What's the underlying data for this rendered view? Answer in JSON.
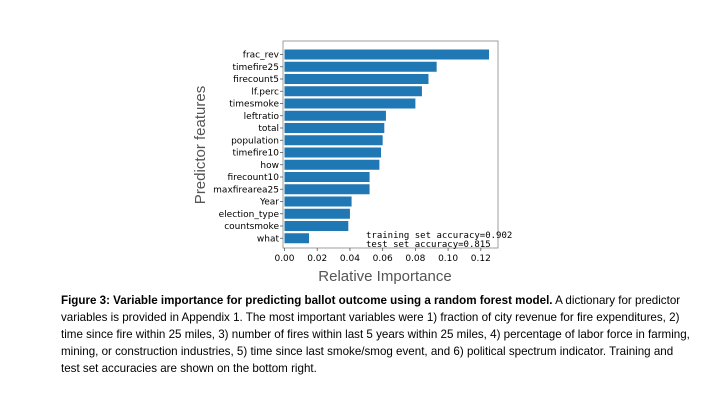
{
  "chart_data": {
    "type": "bar",
    "orientation": "horizontal",
    "title": "",
    "xlabel": "Relative Importance",
    "ylabel": "Predictor features",
    "xlim": [
      0.0,
      0.126
    ],
    "x_ticks": [
      0.0,
      0.02,
      0.04,
      0.06,
      0.08,
      0.1,
      0.12
    ],
    "x_tick_labels": [
      "0.00",
      "0.02",
      "0.04",
      "0.06",
      "0.08",
      "0.10",
      "0.12"
    ],
    "categories": [
      "frac_rev",
      "timefire25",
      "firecount5",
      "lf.perc",
      "timesmoke",
      "leftratio",
      "total",
      "population",
      "timefire10",
      "how",
      "firecount10",
      "maxfirearea25",
      "Year",
      "election_type",
      "countsmoke",
      "what"
    ],
    "values": [
      0.125,
      0.093,
      0.088,
      0.084,
      0.08,
      0.062,
      0.061,
      0.06,
      0.059,
      0.058,
      0.052,
      0.052,
      0.041,
      0.04,
      0.039,
      0.015
    ],
    "bar_color": "#1f77b4",
    "grid": false,
    "annotations": [
      "training set accuracy=0.902",
      "test set accuracy=0.815"
    ],
    "annotation_position": "bottom-right"
  },
  "caption": {
    "bold": "Figure 3: Variable importance for predicting ballot outcome using a random forest model.",
    "text": " A dictionary for predictor variables is provided in Appendix 1. The most important variables were 1) fraction of city revenue for fire expenditures, 2) time since fire within 25 miles, 3) number of fires within last 5 years within 25 miles, 4) percentage of labor force in farming, mining, or construction industries, 5) time since last smoke/smog event, and 6) political spectrum indicator. Training and test set accuracies are shown on the bottom right."
  }
}
